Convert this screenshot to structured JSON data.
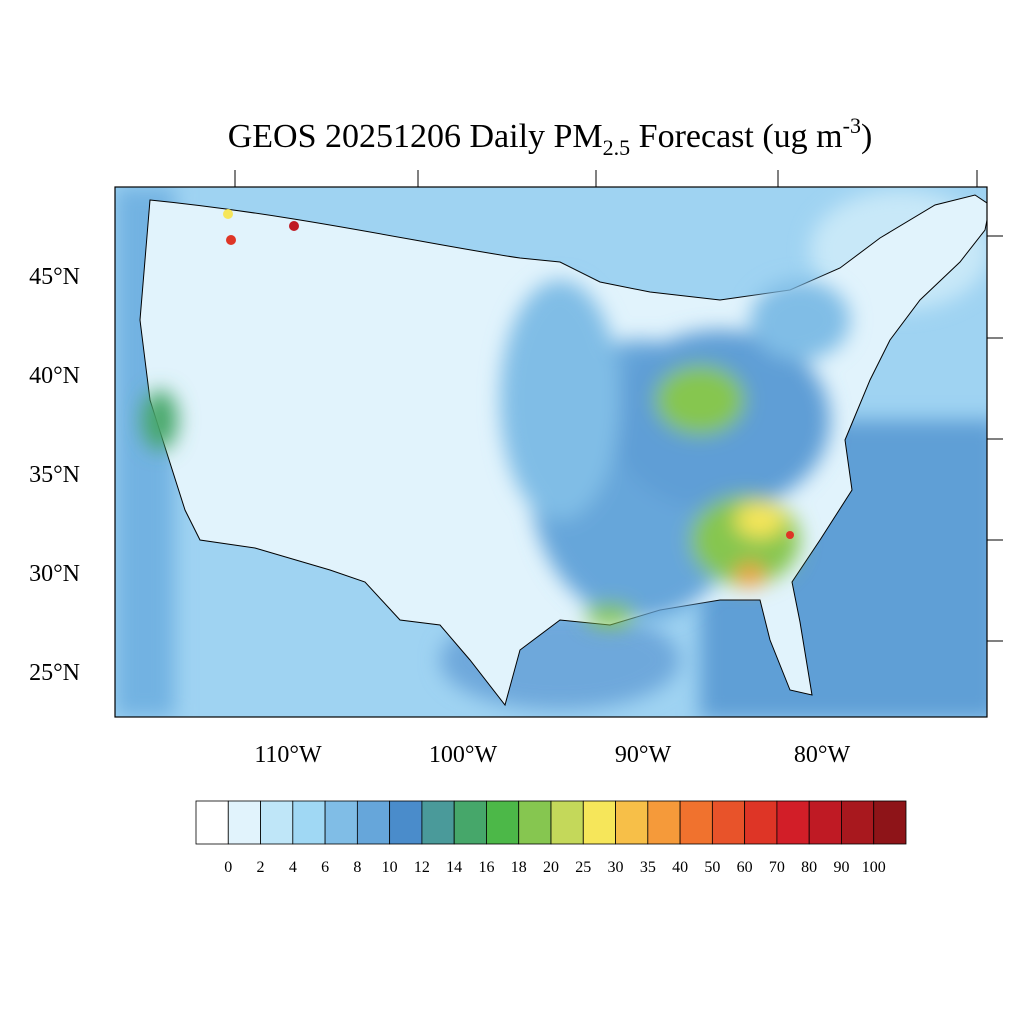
{
  "title": {
    "main": "GEOS 20251206 Daily PM",
    "subscript": "2.5",
    "middle": " Forecast (ug m",
    "superscript": "-3",
    "end": ")"
  },
  "lat_labels": [
    "45°N",
    "40°N",
    "35°N",
    "30°N",
    "25°N"
  ],
  "lon_labels": [
    "110°W",
    "100°W",
    "90°W",
    "80°W"
  ],
  "colorbar": {
    "labels": [
      "0",
      "2",
      "4",
      "6",
      "8",
      "10",
      "12",
      "14",
      "16",
      "18",
      "20",
      "25",
      "30",
      "35",
      "40",
      "50",
      "60",
      "70",
      "80",
      "90",
      "100"
    ],
    "colors": [
      "#ffffff",
      "#e1f3fc",
      "#bfe6f8",
      "#a0d8f4",
      "#80bde6",
      "#66a6da",
      "#4a8ccb",
      "#4a9a9a",
      "#46a76a",
      "#4cb848",
      "#86c650",
      "#c4d85a",
      "#f6e65a",
      "#f7bf48",
      "#f59a3a",
      "#f0722e",
      "#e8532a",
      "#de3526",
      "#d21e28",
      "#bf1a24",
      "#a8181e",
      "#8e1418"
    ]
  }
}
